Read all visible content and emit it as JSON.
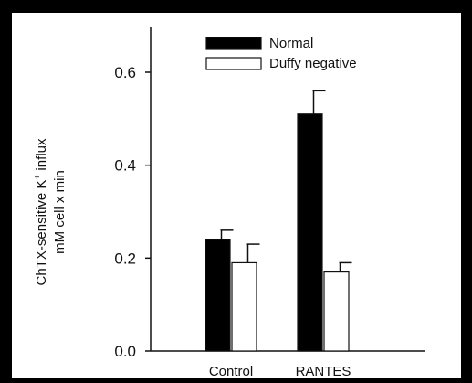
{
  "chart_data": {
    "type": "bar",
    "categories": [
      "Control",
      "RANTES"
    ],
    "series": [
      {
        "name": "Normal",
        "values": [
          0.24,
          0.51
        ],
        "errors": [
          0.02,
          0.05
        ],
        "fill": "#000000"
      },
      {
        "name": "Duffy negative",
        "values": [
          0.19,
          0.17
        ],
        "errors": [
          0.04,
          0.02
        ],
        "fill": "#ffffff"
      }
    ],
    "ylabel_line1": "ChTX-sensitive K",
    "ylabel_sup": "+",
    "ylabel_line1_end": " influx",
    "ylabel_line2": "mM cell x min",
    "yticks": [
      0.0,
      0.2,
      0.4,
      0.6
    ],
    "ytick_labels": [
      "0.0",
      "0.2",
      "0.4",
      "0.6"
    ],
    "ylim": [
      0.0,
      0.7
    ],
    "legend_position": "top"
  }
}
